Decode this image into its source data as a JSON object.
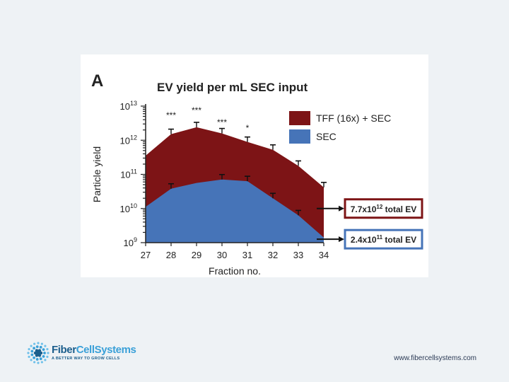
{
  "chart_data": {
    "type": "area",
    "panel_label": "A",
    "title": "EV yield per mL SEC input",
    "xlabel": "Fraction no.",
    "ylabel": "Particle yield",
    "y_scale": "log",
    "ylim_log10": [
      9,
      13
    ],
    "y_tick_base": "10",
    "y_tick_exponents": [
      "9",
      "10",
      "11",
      "12",
      "13"
    ],
    "categories": [
      "27",
      "28",
      "29",
      "30",
      "31",
      "32",
      "33",
      "34"
    ],
    "series": [
      {
        "name": "TFF (16x) + SEC",
        "color": "#7d1416",
        "log10_values": [
          11.55,
          12.18,
          12.38,
          12.2,
          11.95,
          11.72,
          11.25,
          10.62
        ],
        "error_bars": [
          false,
          true,
          true,
          true,
          true,
          true,
          true,
          true
        ]
      },
      {
        "name": "SEC",
        "color": "#4674b8",
        "log10_values": [
          10.05,
          10.58,
          10.75,
          10.85,
          10.8,
          10.3,
          9.8,
          9.15
        ],
        "error_bars": [
          false,
          true,
          false,
          true,
          true,
          true,
          true,
          false
        ]
      }
    ],
    "significance": [
      {
        "category": "28",
        "label": "***"
      },
      {
        "category": "29",
        "label": "***"
      },
      {
        "category": "30",
        "label": "***"
      },
      {
        "category": "31",
        "label": "*"
      }
    ],
    "legend_position": "top-right",
    "totals": [
      {
        "series": "TFF (16x) + SEC",
        "coefficient": "7.7x10",
        "exponent": "12",
        "suffix": " total EV",
        "border": "#7d1416",
        "log10_y": 10.0
      },
      {
        "series": "SEC",
        "coefficient": "2.4x10",
        "exponent": "11",
        "suffix": " total EV",
        "border": "#4674b8",
        "log10_y": 9.1
      }
    ]
  },
  "footer": {
    "brand_part1": "Fiber",
    "brand_part2": "CellSystems",
    "tagline": "A BETTER WAY TO GROW CELLS",
    "url": "www.fibercellsystems.com"
  }
}
